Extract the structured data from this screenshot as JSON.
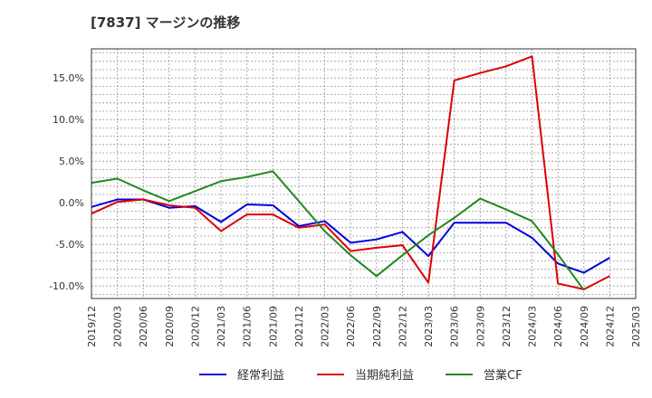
{
  "title": "[7837]  マージンの推移",
  "chart_data": {
    "type": "line",
    "title": "[7837]  マージンの推移",
    "xlabel": "",
    "ylabel": "",
    "x": [
      "2019/12",
      "2020/03",
      "2020/06",
      "2020/09",
      "2020/12",
      "2021/03",
      "2021/06",
      "2021/09",
      "2021/12",
      "2022/03",
      "2022/06",
      "2022/09",
      "2022/12",
      "2023/03",
      "2023/06",
      "2023/09",
      "2023/12",
      "2024/03",
      "2024/06",
      "2024/09",
      "2024/12",
      "2025/03"
    ],
    "y_ticks": [
      -10,
      -5,
      0,
      5,
      10,
      15
    ],
    "y_tick_labels": [
      "-10.0%",
      "-5.0%",
      "0.0%",
      "5.0%",
      "10.0%",
      "15.0%"
    ],
    "ylim": [
      -11.5,
      18.5
    ],
    "grid": true,
    "legend_position": "bottom",
    "series": [
      {
        "name": "経常利益",
        "color": "#0000dd",
        "values": [
          -0.5,
          0.4,
          0.4,
          -0.6,
          -0.4,
          -2.3,
          -0.2,
          -0.3,
          -2.8,
          -2.2,
          -4.8,
          -4.4,
          -3.5,
          -6.4,
          -2.4,
          -2.4,
          -2.4,
          -4.2,
          -7.3,
          -8.4,
          -6.6,
          null
        ]
      },
      {
        "name": "当期純利益",
        "color": "#dd0000",
        "values": [
          -1.3,
          0.1,
          0.4,
          -0.3,
          -0.6,
          -3.4,
          -1.4,
          -1.4,
          -3.0,
          -2.6,
          -5.8,
          -5.4,
          -5.1,
          -9.6,
          14.7,
          15.6,
          16.4,
          17.6,
          -9.7,
          -10.4,
          -8.8,
          null
        ]
      },
      {
        "name": "営業CF",
        "color": "#228822",
        "values": [
          2.4,
          2.9,
          1.5,
          0.2,
          1.4,
          2.6,
          3.1,
          3.8,
          0.2,
          -3.4,
          -6.3,
          -8.8,
          -6.3,
          -3.9,
          -1.8,
          0.5,
          -0.8,
          -2.2,
          -6.2,
          -10.5,
          null,
          null
        ]
      }
    ]
  }
}
